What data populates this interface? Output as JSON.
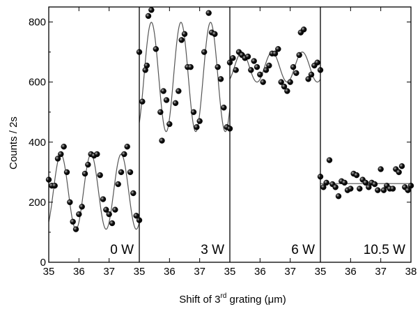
{
  "chart_data": {
    "type": "scatter",
    "xlabel": "Shift of 3rd grating (μm)",
    "xlabel_parts": {
      "pre": "Shift of 3",
      "sup": "rd",
      "post": " grating (",
      "mu": "μ",
      "unit": "m)"
    },
    "ylabel": "Counts / 2s",
    "ylim": [
      0,
      850
    ],
    "y_ticks": [
      0,
      200,
      400,
      600,
      800
    ],
    "x_ticks": [
      35,
      36,
      37,
      38
    ],
    "x_tick_labels": [
      "35",
      "36",
      "37",
      "38"
    ],
    "grid": false,
    "legend": "none",
    "marker_color": "#111111",
    "fit_color": "#555555",
    "panels": [
      {
        "label": "0 W",
        "xlim": [
          35,
          38
        ],
        "points": [
          [
            35.0,
            275
          ],
          [
            35.1,
            255
          ],
          [
            35.2,
            255
          ],
          [
            35.3,
            345
          ],
          [
            35.4,
            360
          ],
          [
            35.5,
            385
          ],
          [
            35.6,
            300
          ],
          [
            35.7,
            200
          ],
          [
            35.8,
            135
          ],
          [
            35.9,
            110
          ],
          [
            36.0,
            160
          ],
          [
            36.1,
            185
          ],
          [
            36.2,
            295
          ],
          [
            36.3,
            325
          ],
          [
            36.4,
            360
          ],
          [
            36.5,
            355
          ],
          [
            36.6,
            360
          ],
          [
            36.7,
            290
          ],
          [
            36.8,
            210
          ],
          [
            36.9,
            175
          ],
          [
            37.0,
            160
          ],
          [
            37.1,
            130
          ],
          [
            37.2,
            175
          ],
          [
            37.3,
            260
          ],
          [
            37.4,
            300
          ],
          [
            37.5,
            360
          ],
          [
            37.6,
            385
          ],
          [
            37.7,
            300
          ],
          [
            37.8,
            230
          ],
          [
            37.9,
            155
          ],
          [
            38.0,
            140
          ]
        ],
        "fit": {
          "type": "sine",
          "offset": 235,
          "amplitude": 125,
          "period": 1.0,
          "peak_x": 35.4
        }
      },
      {
        "label": "3 W",
        "xlim": [
          35,
          38
        ],
        "points": [
          [
            35.0,
            700
          ],
          [
            35.1,
            535
          ],
          [
            35.2,
            640
          ],
          [
            35.25,
            655
          ],
          [
            35.3,
            820
          ],
          [
            35.4,
            840
          ],
          [
            35.55,
            710
          ],
          [
            35.7,
            500
          ],
          [
            35.75,
            405
          ],
          [
            35.8,
            570
          ],
          [
            35.9,
            540
          ],
          [
            36.0,
            460
          ],
          [
            36.2,
            530
          ],
          [
            36.3,
            570
          ],
          [
            36.4,
            740
          ],
          [
            36.5,
            760
          ],
          [
            36.6,
            650
          ],
          [
            36.7,
            650
          ],
          [
            36.8,
            500
          ],
          [
            36.9,
            450
          ],
          [
            37.0,
            470
          ],
          [
            37.15,
            700
          ],
          [
            37.3,
            830
          ],
          [
            37.4,
            765
          ],
          [
            37.5,
            760
          ],
          [
            37.6,
            650
          ],
          [
            37.7,
            610
          ],
          [
            37.8,
            515
          ],
          [
            37.9,
            450
          ],
          [
            38.0,
            445
          ]
        ],
        "fit": {
          "type": "sine",
          "offset": 617,
          "amplitude": 182,
          "period": 0.98,
          "peak_x": 35.4
        }
      },
      {
        "label": "6 W",
        "xlim": [
          35,
          38
        ],
        "points": [
          [
            35.0,
            665
          ],
          [
            35.1,
            680
          ],
          [
            35.2,
            640
          ],
          [
            35.3,
            700
          ],
          [
            35.4,
            690
          ],
          [
            35.5,
            680
          ],
          [
            35.6,
            685
          ],
          [
            35.7,
            640
          ],
          [
            35.8,
            670
          ],
          [
            35.9,
            650
          ],
          [
            36.0,
            625
          ],
          [
            36.1,
            600
          ],
          [
            36.2,
            640
          ],
          [
            36.3,
            655
          ],
          [
            36.4,
            695
          ],
          [
            36.5,
            695
          ],
          [
            36.6,
            710
          ],
          [
            36.7,
            600
          ],
          [
            36.8,
            585
          ],
          [
            36.9,
            570
          ],
          [
            37.0,
            600
          ],
          [
            37.1,
            650
          ],
          [
            37.2,
            630
          ],
          [
            37.3,
            690
          ],
          [
            37.35,
            765
          ],
          [
            37.45,
            775
          ],
          [
            37.6,
            610
          ],
          [
            37.7,
            625
          ],
          [
            37.8,
            655
          ],
          [
            37.9,
            665
          ],
          [
            38.0,
            640
          ]
        ],
        "fit": {
          "type": "sine",
          "offset": 650,
          "amplitude": 50,
          "period": 1.0,
          "peak_x": 35.4
        }
      },
      {
        "label": "10.5 W",
        "xlim": [
          35,
          38
        ],
        "points": [
          [
            35.0,
            285
          ],
          [
            35.1,
            250
          ],
          [
            35.2,
            265
          ],
          [
            35.3,
            340
          ],
          [
            35.4,
            260
          ],
          [
            35.5,
            250
          ],
          [
            35.6,
            220
          ],
          [
            35.7,
            270
          ],
          [
            35.8,
            265
          ],
          [
            35.9,
            240
          ],
          [
            36.0,
            245
          ],
          [
            36.1,
            295
          ],
          [
            36.2,
            290
          ],
          [
            36.3,
            245
          ],
          [
            36.4,
            275
          ],
          [
            36.5,
            265
          ],
          [
            36.6,
            250
          ],
          [
            36.7,
            265
          ],
          [
            36.8,
            260
          ],
          [
            36.9,
            240
          ],
          [
            37.0,
            310
          ],
          [
            37.1,
            240
          ],
          [
            37.2,
            255
          ],
          [
            37.3,
            245
          ],
          [
            37.4,
            245
          ],
          [
            37.5,
            310
          ],
          [
            37.6,
            300
          ],
          [
            37.7,
            320
          ],
          [
            37.8,
            250
          ],
          [
            37.9,
            240
          ],
          [
            38.0,
            255
          ]
        ],
        "fit": {
          "type": "flat",
          "offset": 262
        }
      }
    ]
  }
}
